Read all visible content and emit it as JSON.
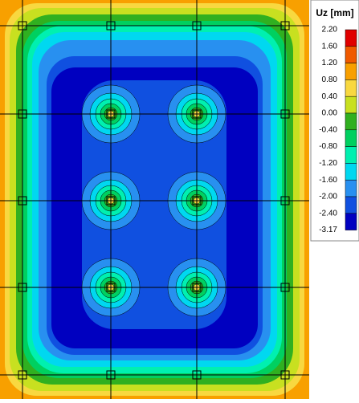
{
  "legend": {
    "title": "Uz [mm]",
    "labels": [
      "2.20",
      "1.60",
      "1.20",
      "0.80",
      "0.40",
      "0.00",
      "-0.40",
      "-0.80",
      "-1.20",
      "-1.60",
      "-2.00",
      "-2.40",
      "-3.17"
    ],
    "colors": [
      "#e00000",
      "#f05a00",
      "#f8a000",
      "#f8d840",
      "#c8e020",
      "#30b020",
      "#00d060",
      "#00f0b0",
      "#00d8f0",
      "#2890f0",
      "#1050e0",
      "#0000c0"
    ]
  }
}
